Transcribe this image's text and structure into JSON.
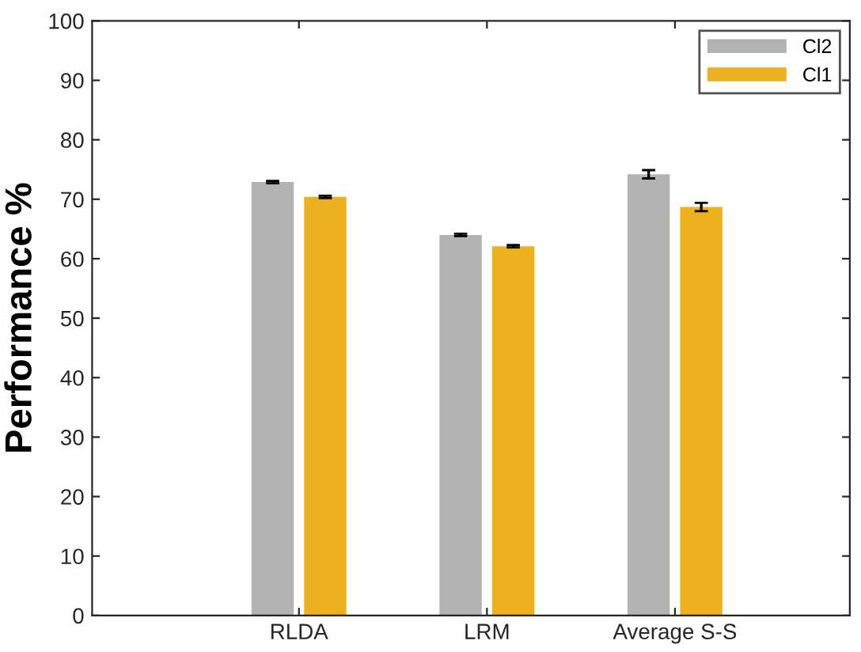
{
  "chart_data": {
    "type": "bar",
    "ylabel": "Performance %",
    "categories": [
      "RLDA",
      "LRM",
      "Average S-S"
    ],
    "series": [
      {
        "name": "Cl2",
        "color": "#b3b3b3",
        "values": [
          72.9,
          64.0,
          74.2
        ],
        "errors": [
          0.2,
          0.2,
          0.7
        ]
      },
      {
        "name": "Cl1",
        "color": "#edb120",
        "values": [
          70.4,
          62.1,
          68.7
        ],
        "errors": [
          0.2,
          0.2,
          0.7
        ]
      }
    ],
    "ylim": [
      0,
      100
    ],
    "yticks": [
      0,
      10,
      20,
      30,
      40,
      50,
      60,
      70,
      80,
      90,
      100
    ],
    "grid": false,
    "legend": "top right"
  }
}
